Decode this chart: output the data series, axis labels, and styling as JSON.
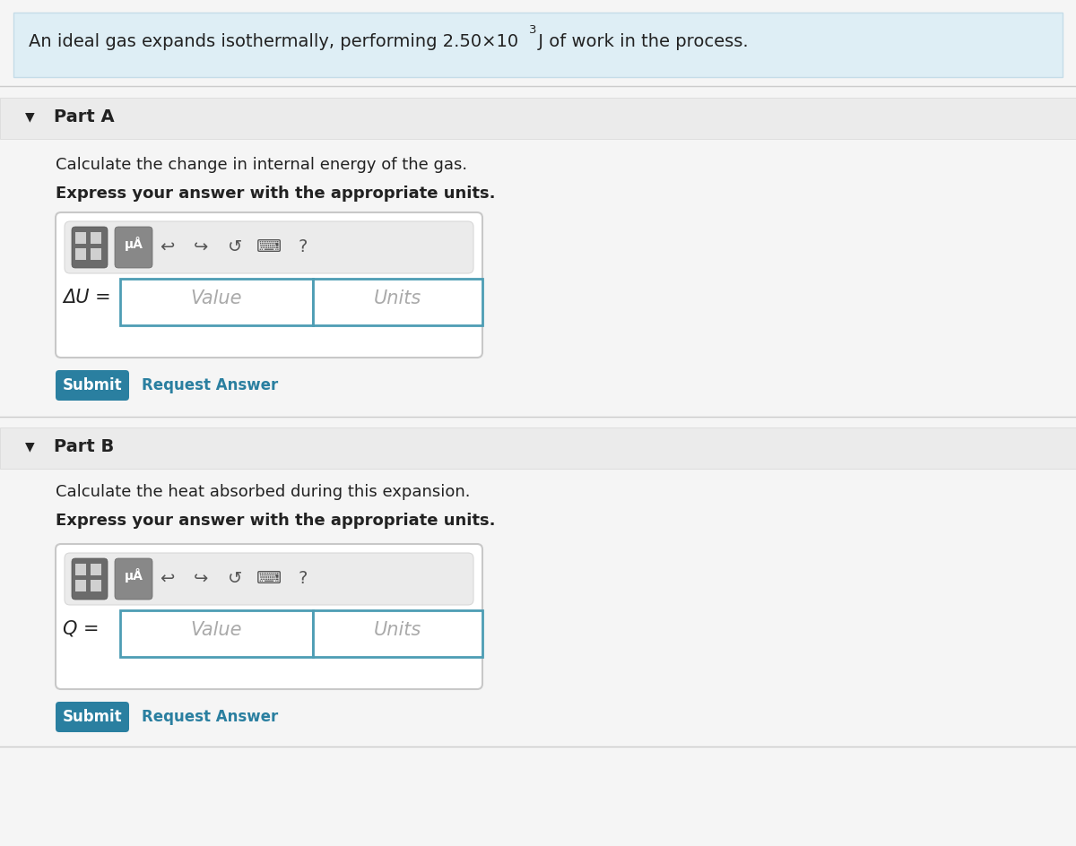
{
  "bg_color": "#f5f5f5",
  "header_bg": "#deeef5",
  "header_border": "#c5dce8",
  "section_bg": "#ebebeb",
  "section_border": "#d8d8d8",
  "white": "#ffffff",
  "input_border": "#4d9db4",
  "submit_bg": "#2a7fa0",
  "submit_text": "#ffffff",
  "link_color": "#2a7fa0",
  "text_dark": "#222222",
  "toolbar_bg": "#e8e8e8",
  "toolbar_border": "#cccccc",
  "icon1_bg": "#757575",
  "icon2_bg": "#888888",
  "placeholder_color": "#aaaaaa",
  "part_a_label": "Part A",
  "part_a_q1": "Calculate the change in internal energy of the gas.",
  "part_a_q2": "Express your answer with the appropriate units.",
  "part_a_var": "ΔU =",
  "part_b_label": "Part B",
  "part_b_q1": "Calculate the heat absorbed during this expansion.",
  "part_b_q2": "Express your answer with the appropriate units.",
  "part_b_var": "Q =",
  "value_placeholder": "Value",
  "units_placeholder": "Units",
  "submit_label": "Submit",
  "request_label": "Request Answer",
  "fig_w": 12.0,
  "fig_h": 9.45,
  "dpi": 100
}
